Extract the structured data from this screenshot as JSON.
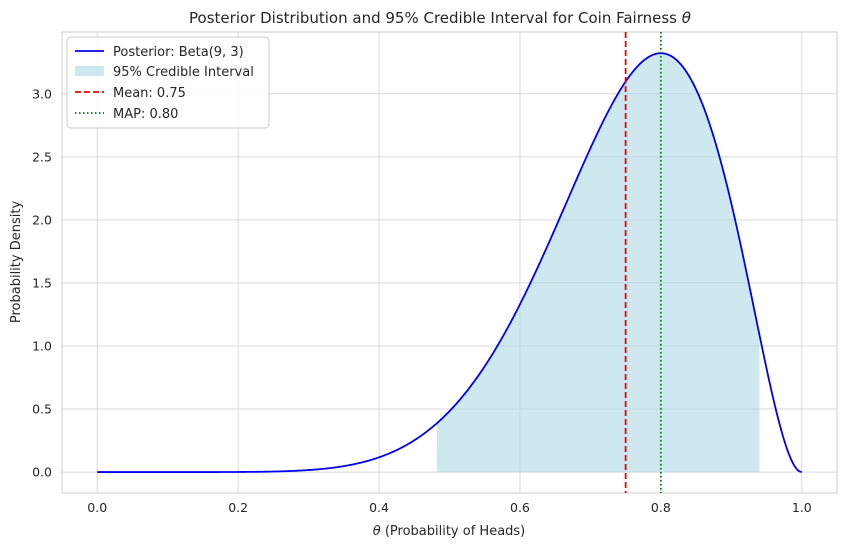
{
  "chart_data": {
    "type": "line",
    "title_prefix": "Posterior Distribution and 95% Credible Interval for Coin Fairness ",
    "title_symbol": "θ",
    "xlabel_symbol": "θ",
    "xlabel_suffix": " (Probability of Heads)",
    "ylabel": "Probability Density",
    "xlim": [
      -0.05,
      1.05
    ],
    "ylim": [
      -0.166,
      3.49
    ],
    "xticks": [
      0.0,
      0.2,
      0.4,
      0.6,
      0.8,
      1.0
    ],
    "xtick_labels": [
      "0.0",
      "0.2",
      "0.4",
      "0.6",
      "0.8",
      "1.0"
    ],
    "yticks": [
      0.0,
      0.5,
      1.0,
      1.5,
      2.0,
      2.5,
      3.0
    ],
    "ytick_labels": [
      "0.0",
      "0.5",
      "1.0",
      "1.5",
      "2.0",
      "2.5",
      "3.0"
    ],
    "grid": true,
    "legend_position": "top-left",
    "posterior": {
      "alpha": 9,
      "beta": 3,
      "x_range": [
        0,
        1
      ],
      "color": "#0000ee",
      "label": "Posterior: Beta(9, 3)"
    },
    "credible_interval": {
      "lower": 0.482,
      "upper": 0.94,
      "color": "#add8e6",
      "label": "95% Credible Interval"
    },
    "mean": {
      "value": 0.75,
      "color": "#ee0000",
      "style": "dashed",
      "label": "Mean: 0.75"
    },
    "map": {
      "value": 0.8,
      "color": "#008000",
      "style": "dotted",
      "label": "MAP: 0.80"
    }
  }
}
